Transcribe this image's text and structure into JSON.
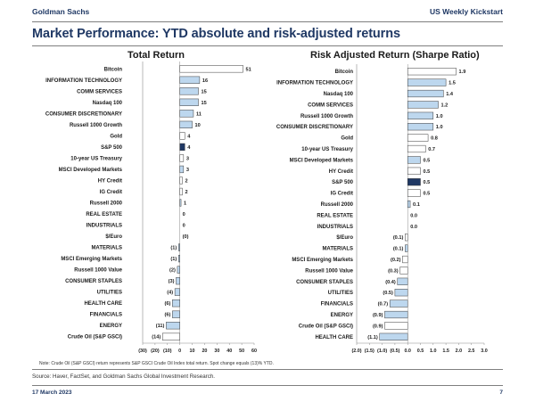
{
  "header": {
    "brand": "Goldman Sachs",
    "report": "US Weekly Kickstart"
  },
  "title": "Market Performance: YTD absolute and risk-adjusted returns",
  "note": "Note: Crude Oil (S&P GSCI) return represents S&P GSCI Crude Oil Index total return. Spot change equals (13)% YTD.",
  "source": "Source: Haver, FactSet, and Goldman Sachs Global Investment Research.",
  "footer": {
    "date": "17 March 2023",
    "page": "7"
  },
  "colors": {
    "positive": "#bdd7ee",
    "benchmark": "#1f3864",
    "highlight_white": "#ffffff",
    "bar_stroke": "#3a3a3a",
    "title": "#1f3864"
  },
  "chart_data": [
    {
      "type": "bar",
      "orientation": "horizontal",
      "title": "Total Return",
      "categories": [
        "Bitcoin",
        "INFORMATION TECHNOLOGY",
        "COMM SERVICES",
        "Nasdaq 100",
        "CONSUMER DISCRETIONARY",
        "Russell 1000 Growth",
        "Gold",
        "S&P 500",
        "10-year US Treasury",
        "MSCI Developed Markets",
        "HY Credit",
        "IG Credit",
        "Russell 2000",
        "REAL ESTATE",
        "INDUSTRIALS",
        "$/Euro",
        "MATERIALS",
        "MSCI Emerging Markets",
        "Russell 1000 Value",
        "CONSUMER STAPLES",
        "UTILITIES",
        "HEALTH CARE",
        "FINANCIALS",
        "ENERGY",
        "Crude Oil (S&P GSCI)"
      ],
      "values": [
        51,
        16,
        15,
        15,
        11,
        10,
        4,
        4,
        3,
        3,
        2,
        2,
        1,
        0,
        0,
        0,
        -1,
        -1,
        -2,
        -3,
        -4,
        -6,
        -6,
        -11,
        -14
      ],
      "labels": [
        "51",
        "16",
        "15",
        "15",
        "11",
        "10",
        "4",
        "4",
        "3",
        "3",
        "2",
        "2",
        "1",
        "0",
        "0",
        "(0)",
        "(1)",
        "(1)",
        "(2)",
        "(3)",
        "(4)",
        "(6)",
        "(6)",
        "(11)",
        "(14)"
      ],
      "xlim": [
        -30,
        60
      ],
      "xticks": [
        -30,
        -20,
        -10,
        0,
        10,
        20,
        30,
        40,
        50,
        60
      ],
      "xtick_labels": [
        "(30)",
        "(20)",
        "(10)",
        "0",
        "10",
        "20",
        "30",
        "40",
        "50",
        "60"
      ],
      "highlight": {
        "Bitcoin": "white",
        "Gold": "white",
        "S&P 500": "navy",
        "10-year US Treasury": "white",
        "HY Credit": "white",
        "IG Credit": "white",
        "$/Euro": "white",
        "Crude Oil (S&P GSCI)": "white"
      }
    },
    {
      "type": "bar",
      "orientation": "horizontal",
      "title": "Risk Adjusted Return (Sharpe Ratio)",
      "categories": [
        "Bitcoin",
        "INFORMATION TECHNOLOGY",
        "Nasdaq 100",
        "COMM SERVICES",
        "Russell 1000 Growth",
        "CONSUMER DISCRETIONARY",
        "Gold",
        "10-year US Treasury",
        "MSCI Developed Markets",
        "HY Credit",
        "S&P 500",
        "IG Credit",
        "Russell 2000",
        "REAL ESTATE",
        "INDUSTRIALS",
        "$/Euro",
        "MATERIALS",
        "MSCI Emerging Markets",
        "Russell 1000 Value",
        "CONSUMER STAPLES",
        "UTILITIES",
        "FINANCIALS",
        "ENERGY",
        "Crude Oil (S&P GSCI)",
        "HEALTH CARE"
      ],
      "values": [
        1.9,
        1.5,
        1.4,
        1.2,
        1.0,
        1.0,
        0.8,
        0.7,
        0.5,
        0.5,
        0.5,
        0.5,
        0.1,
        0.0,
        0.0,
        -0.1,
        -0.1,
        -0.2,
        -0.3,
        -0.4,
        -0.5,
        -0.7,
        -0.9,
        -0.9,
        -1.1
      ],
      "labels": [
        "1.9",
        "1.5",
        "1.4",
        "1.2",
        "1.0",
        "1.0",
        "0.8",
        "0.7",
        "0.5",
        "0.5",
        "0.5",
        "0.5",
        "0.1",
        "0.0",
        "0.0",
        "(0.1)",
        "(0.1)",
        "(0.2)",
        "(0.3)",
        "(0.4)",
        "(0.5)",
        "(0.7)",
        "(0.9)",
        "(0.9)",
        "(1.1)"
      ],
      "xlim": [
        -2.0,
        3.0
      ],
      "xticks": [
        -2.0,
        -1.5,
        -1.0,
        -0.5,
        0.0,
        0.5,
        1.0,
        1.5,
        2.0,
        2.5,
        3.0
      ],
      "xtick_labels": [
        "(2.0)",
        "(1.5)",
        "(1.0)",
        "(0.5)",
        "0.0",
        "0.5",
        "1.0",
        "1.5",
        "2.0",
        "2.5",
        "3.0"
      ],
      "highlight": {
        "Bitcoin": "white",
        "Gold": "white",
        "10-year US Treasury": "white",
        "HY Credit": "white",
        "S&P 500": "navy",
        "IG Credit": "white",
        "$/Euro": "white",
        "MSCI Emerging Markets": "white",
        "Russell 1000 Value": "white",
        "Crude Oil (S&P GSCI)": "white"
      }
    }
  ]
}
